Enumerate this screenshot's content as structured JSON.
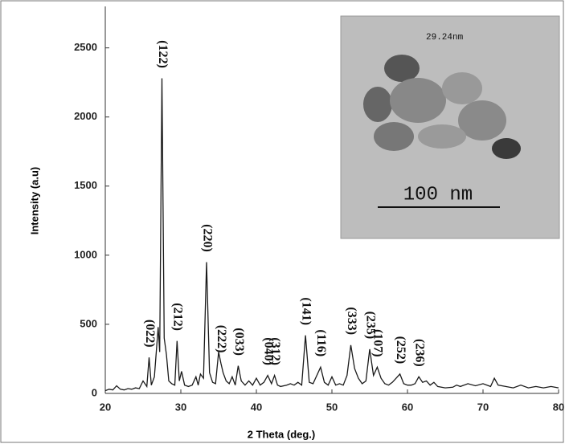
{
  "chart_data": {
    "type": "line",
    "xlabel": "2 Theta (deg.)",
    "ylabel": "Intensity (a.u)",
    "color": "#1a1a1a",
    "xlim": [
      20,
      80
    ],
    "ylim": [
      0,
      2800
    ],
    "xticks": [
      20,
      30,
      40,
      50,
      60,
      70,
      80
    ],
    "yticks": [
      0,
      500,
      1000,
      1500,
      2000,
      2500
    ],
    "x": [
      20,
      20.5,
      21,
      21.5,
      22,
      22.5,
      23,
      23.5,
      24,
      24.5,
      25,
      25.5,
      25.8,
      26.1,
      26.5,
      27,
      27.2,
      27.5,
      27.8,
      28.1,
      28.4,
      28.8,
      29.2,
      29.5,
      29.8,
      30.1,
      30.5,
      31,
      31.5,
      32,
      32.3,
      32.6,
      33,
      33.4,
      33.8,
      34.2,
      34.6,
      35,
      35.3,
      35.6,
      36,
      36.4,
      36.8,
      37.2,
      37.6,
      38,
      38.5,
      39,
      39.5,
      40,
      40.5,
      41,
      41.5,
      42,
      42.4,
      42.8,
      43.2,
      44,
      44.5,
      45,
      45.5,
      46,
      46.5,
      47,
      47.5,
      48,
      48.5,
      49,
      49.5,
      50,
      50.5,
      51,
      51.5,
      52,
      52.5,
      53,
      53.5,
      54,
      54.5,
      55,
      55.5,
      56,
      56.5,
      57,
      57.5,
      58,
      58.5,
      59,
      59.5,
      60,
      60.5,
      61,
      61.5,
      62,
      62.5,
      63,
      63.5,
      64,
      65,
      66,
      66.5,
      67,
      68,
      69,
      70,
      71,
      71.5,
      72,
      73,
      74,
      75,
      76,
      77,
      78,
      79,
      80
    ],
    "values": [
      20,
      30,
      25,
      55,
      30,
      25,
      35,
      30,
      40,
      35,
      90,
      50,
      260,
      60,
      120,
      480,
      300,
      2280,
      400,
      280,
      90,
      70,
      60,
      380,
      90,
      160,
      60,
      50,
      60,
      120,
      60,
      140,
      110,
      950,
      150,
      80,
      70,
      300,
      220,
      150,
      90,
      70,
      120,
      60,
      200,
      90,
      60,
      90,
      60,
      110,
      60,
      80,
      130,
      70,
      130,
      60,
      50,
      60,
      70,
      60,
      80,
      60,
      420,
      80,
      70,
      130,
      190,
      80,
      60,
      120,
      60,
      70,
      60,
      130,
      350,
      180,
      110,
      70,
      90,
      320,
      130,
      190,
      110,
      70,
      60,
      80,
      110,
      140,
      70,
      60,
      60,
      70,
      120,
      80,
      90,
      60,
      80,
      50,
      40,
      45,
      60,
      50,
      70,
      55,
      70,
      50,
      110,
      60,
      50,
      40,
      60,
      40,
      50,
      40,
      50,
      40
    ],
    "peaks": [
      {
        "label": "(022)",
        "x": 25.8,
        "y": 260
      },
      {
        "label": "(122)",
        "x": 27.5,
        "y": 2280
      },
      {
        "label": "(212)",
        "x": 29.5,
        "y": 380
      },
      {
        "label": "(220)",
        "x": 33.4,
        "y": 950
      },
      {
        "label": "(222)",
        "x": 35.3,
        "y": 220
      },
      {
        "label": "(033)",
        "x": 37.6,
        "y": 200
      },
      {
        "label": "(040)",
        "x": 41.5,
        "y": 130
      },
      {
        "label": "(312)",
        "x": 42.4,
        "y": 130
      },
      {
        "label": "(141)",
        "x": 46.5,
        "y": 420
      },
      {
        "label": "(116)",
        "x": 48.5,
        "y": 190
      },
      {
        "label": "(333)",
        "x": 52.5,
        "y": 350
      },
      {
        "label": "(235)",
        "x": 55,
        "y": 320
      },
      {
        "label": "(107)",
        "x": 56,
        "y": 190
      },
      {
        "label": "(252)",
        "x": 59,
        "y": 140
      },
      {
        "label": "(236)",
        "x": 61.5,
        "y": 120
      }
    ]
  },
  "inset": {
    "scale_label": "29.24nm",
    "bar_label": "100 nm"
  }
}
